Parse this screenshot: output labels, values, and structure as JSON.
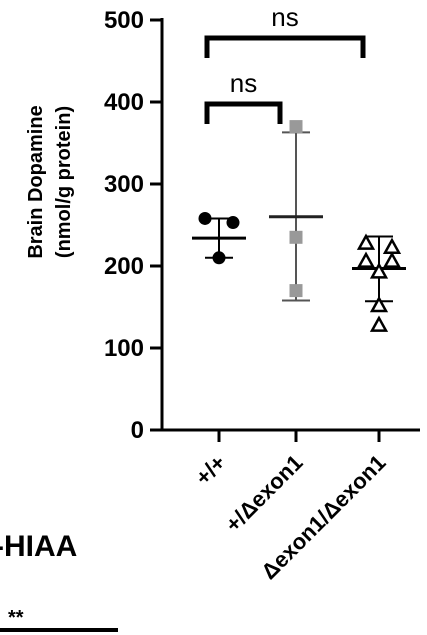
{
  "chart_data": {
    "type": "scatter",
    "ylabel_line1": "Brain Dopamine",
    "ylabel_line2": "(nmol/g protein)",
    "ylim": [
      0,
      500
    ],
    "yticks": [
      "0",
      "100",
      "200",
      "300",
      "400",
      "500"
    ],
    "categories": [
      "+/+",
      "+/Δexon1",
      "Δexon1/Δexon1"
    ],
    "groups": [
      {
        "category": "+/+",
        "marker": "circle",
        "color": "#000000",
        "points": [
          258,
          253,
          210
        ],
        "mean": 234,
        "sd_low": 210,
        "sd_high": 258
      },
      {
        "category": "+/Δexon1",
        "marker": "square",
        "color": "#999999",
        "points": [
          370,
          235,
          170
        ],
        "mean": 260,
        "sd_low": 158,
        "sd_high": 363
      },
      {
        "category": "Δexon1/Δexon1",
        "marker": "triangle-open",
        "color": "#000000",
        "points": [
          228,
          223,
          206,
          206,
          193,
          152,
          128
        ],
        "mean": 197,
        "sd_low": 157,
        "sd_high": 236
      }
    ],
    "comparisons": [
      {
        "from": 0,
        "to": 1,
        "label": "ns"
      },
      {
        "from": 0,
        "to": 2,
        "label": "ns"
      }
    ]
  },
  "fragments": {
    "next_panel_title": "-HIAA",
    "next_panel_sig": "**"
  }
}
